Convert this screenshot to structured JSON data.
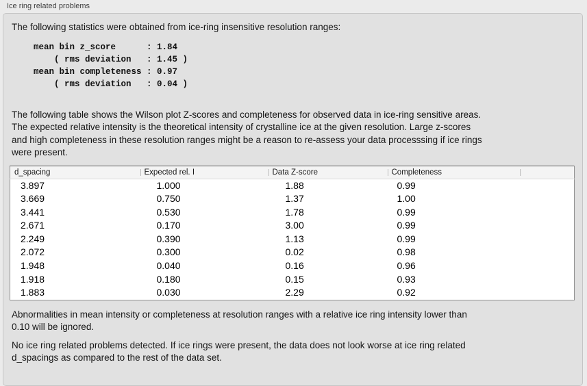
{
  "window": {
    "group_label": "Ice ring related problems"
  },
  "content": {
    "intro": "The following statistics were obtained from ice-ring insensitive resolution ranges:",
    "stats_block": "mean bin z_score      : 1.84\n    ( rms deviation   : 1.45 )\nmean bin completeness : 0.97\n    ( rms deviation   : 0.04 )",
    "table_intro": "The following table shows the Wilson plot Z-scores and completeness for observed data in ice-ring sensitive areas.\nThe expected relative intensity is the theoretical intensity of crystalline ice at the given resolution. Large z-scores\nand high completeness in these resolution ranges might be a reason to re-assess your data processsing if ice rings\nwere present.",
    "ignore_note": "Abnormalities in mean intensity or completeness at resolution ranges with a relative ice ring intensity lower than\n0.10 will be ignored.",
    "conclusion": "No ice ring related problems detected. If ice rings were present, the data does not look worse at ice ring related\nd_spacings as compared to the rest of the data set."
  },
  "stats": {
    "mean_bin_z_score": "1.84",
    "z_score_rms_deviation": "1.45",
    "mean_bin_completeness": "0.97",
    "completeness_rms_deviation": "0.04"
  },
  "table": {
    "headers": [
      "d_spacing",
      "Expected rel. I",
      "Data Z-score",
      "Completeness",
      ""
    ],
    "rows": [
      [
        "3.897",
        "1.000",
        "1.88",
        "0.99"
      ],
      [
        "3.669",
        "0.750",
        "1.37",
        "1.00"
      ],
      [
        "3.441",
        "0.530",
        "1.78",
        "0.99"
      ],
      [
        "2.671",
        "0.170",
        "3.00",
        "0.99"
      ],
      [
        "2.249",
        "0.390",
        "1.13",
        "0.99"
      ],
      [
        "2.072",
        "0.300",
        "0.02",
        "0.98"
      ],
      [
        "1.948",
        "0.040",
        "0.16",
        "0.96"
      ],
      [
        "1.918",
        "0.180",
        "0.15",
        "0.93"
      ],
      [
        "1.883",
        "0.030",
        "2.29",
        "0.92"
      ]
    ]
  },
  "colors": {
    "page_bg": "#ebebeb",
    "groupbox_bg": "#e1e1e1",
    "groupbox_border": "#c5c5c5",
    "table_header_bg": "#f4f4f4",
    "table_border": "#8f8f8f",
    "table_body_bg": "#ffffff"
  }
}
